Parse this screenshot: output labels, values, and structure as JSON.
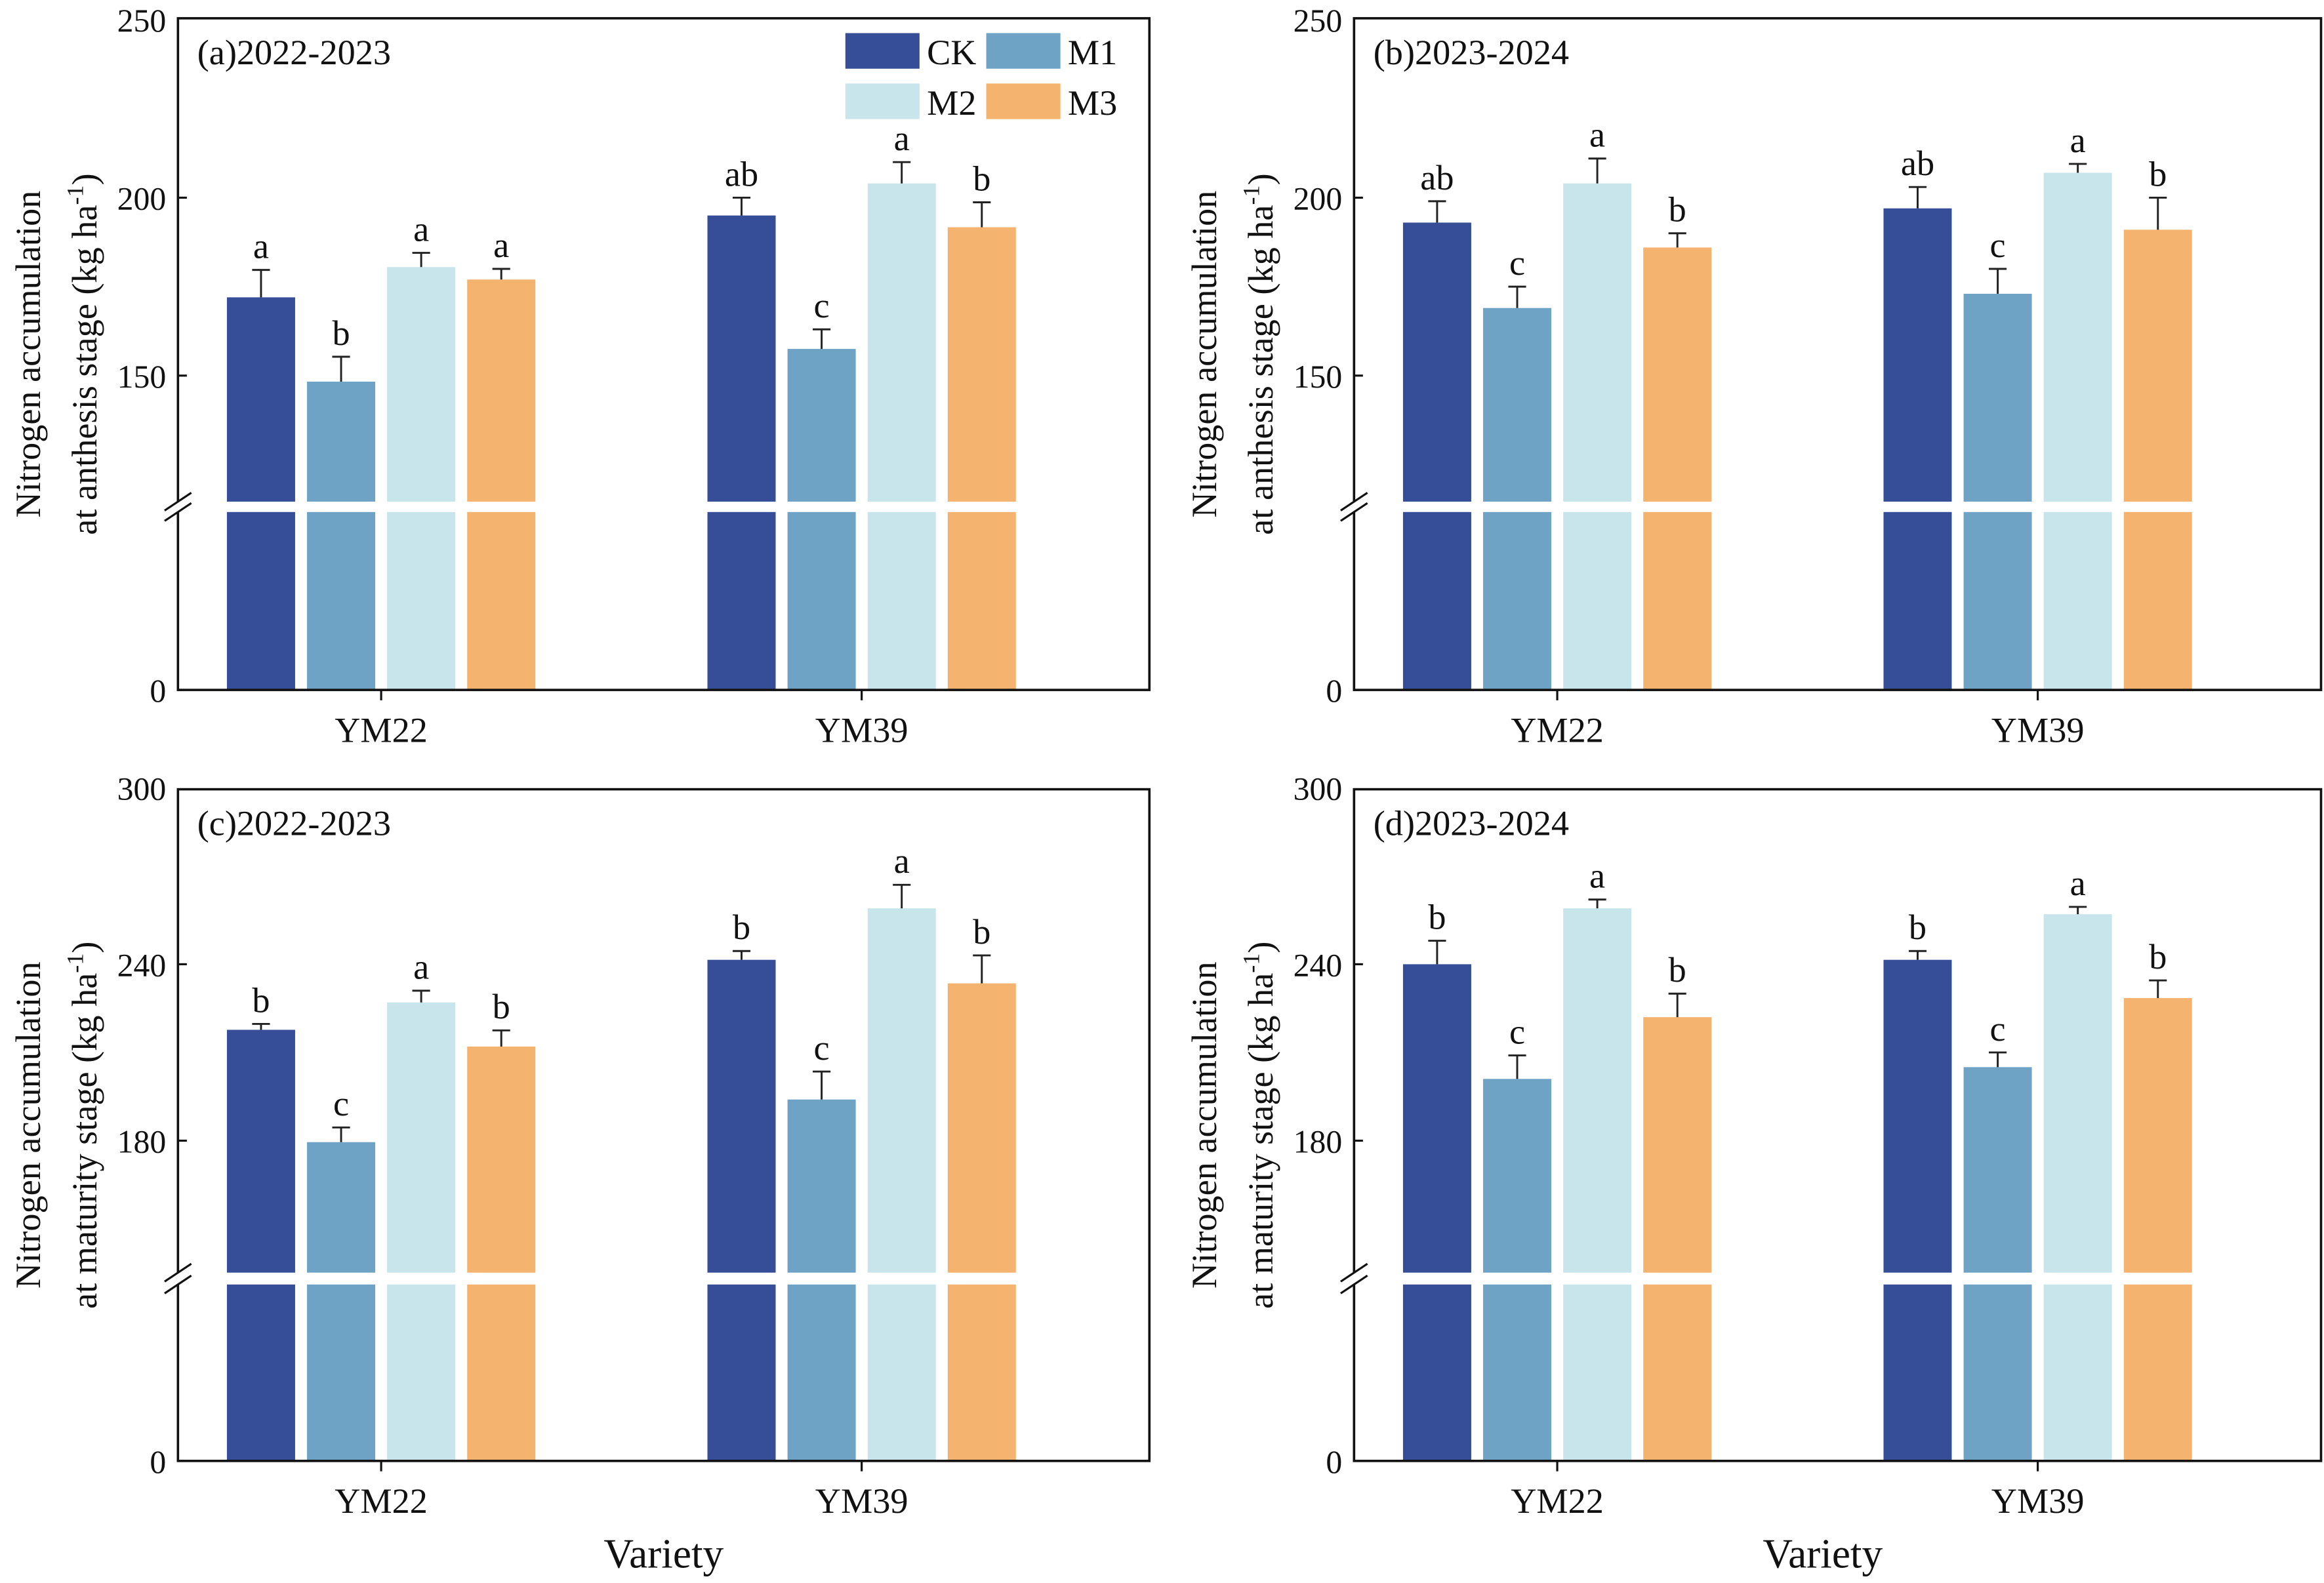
{
  "chart_data": [
    {
      "type": "bar",
      "title": "(a)2022-2023",
      "ylabel_line1": "Nitrogen accumulation",
      "ylabel_line2": "at anthesis stage (kg ha",
      "ylabel_sup": "-1",
      "ylabel_close": ")",
      "xlabel": "",
      "categories": [
        "YM22",
        "YM39"
      ],
      "yticks": [
        "0",
        "150",
        "200",
        "250"
      ],
      "ylim_upper": [
        115,
        250
      ],
      "axis_break": true,
      "series": [
        {
          "name": "CK",
          "values": [
            172,
            195
          ],
          "errors": [
            7.7,
            5
          ],
          "letters": [
            "a",
            "ab"
          ]
        },
        {
          "name": "M1",
          "values": [
            148.3,
            157.5
          ],
          "errors": [
            7,
            5.5
          ],
          "letters": [
            "b",
            "c"
          ]
        },
        {
          "name": "M2",
          "values": [
            180.5,
            204
          ],
          "errors": [
            4,
            6
          ],
          "letters": [
            "a",
            "a"
          ]
        },
        {
          "name": "M3",
          "values": [
            177,
            191.7
          ],
          "errors": [
            3,
            7
          ],
          "letters": [
            "a",
            "b"
          ]
        }
      ],
      "legend": "top-right"
    },
    {
      "type": "bar",
      "title": "(b)2023-2024",
      "ylabel_line1": "Nitrogen accumulation",
      "ylabel_line2": "at anthesis stage (kg ha",
      "ylabel_sup": "-1",
      "ylabel_close": ")",
      "xlabel": "",
      "categories": [
        "YM22",
        "YM39"
      ],
      "yticks": [
        "0",
        "150",
        "200",
        "250"
      ],
      "ylim_upper": [
        115,
        250
      ],
      "axis_break": true,
      "series": [
        {
          "name": "CK",
          "values": [
            193,
            197
          ],
          "errors": [
            6,
            6
          ],
          "letters": [
            "ab",
            "ab"
          ]
        },
        {
          "name": "M1",
          "values": [
            169,
            173
          ],
          "errors": [
            6,
            7
          ],
          "letters": [
            "c",
            "c"
          ]
        },
        {
          "name": "M2",
          "values": [
            204,
            207
          ],
          "errors": [
            7,
            2.5
          ],
          "letters": [
            "a",
            "a"
          ]
        },
        {
          "name": "M3",
          "values": [
            186,
            191
          ],
          "errors": [
            4,
            9
          ],
          "letters": [
            "b",
            "b"
          ]
        }
      ]
    },
    {
      "type": "bar",
      "title": "(c)2022-2023",
      "ylabel_line1": "Nitrogen accumulation",
      "ylabel_line2": "at maturity stage (kg ha",
      "ylabel_sup": "-1",
      "ylabel_close": ")",
      "xlabel": "Variety",
      "categories": [
        "YM22",
        "YM39"
      ],
      "yticks": [
        "0",
        "180",
        "240",
        "300"
      ],
      "ylim_upper": [
        135,
        300
      ],
      "axis_break": true,
      "series": [
        {
          "name": "CK",
          "values": [
            217.7,
            241.5
          ],
          "errors": [
            2,
            3
          ],
          "letters": [
            "b",
            "b"
          ]
        },
        {
          "name": "M1",
          "values": [
            179.5,
            194
          ],
          "errors": [
            5,
            9.5
          ],
          "letters": [
            "c",
            "c"
          ]
        },
        {
          "name": "M2",
          "values": [
            227,
            259
          ],
          "errors": [
            4,
            8
          ],
          "letters": [
            "a",
            "a"
          ]
        },
        {
          "name": "M3",
          "values": [
            212,
            233.5
          ],
          "errors": [
            5.5,
            9.5
          ],
          "letters": [
            "b",
            "b"
          ]
        }
      ]
    },
    {
      "type": "bar",
      "title": "(d)2023-2024",
      "ylabel_line1": "Nitrogen accumulation",
      "ylabel_line2": "at maturity stage (kg ha",
      "ylabel_sup": "-1",
      "ylabel_close": ")",
      "xlabel": "Variety",
      "categories": [
        "YM22",
        "YM39"
      ],
      "yticks": [
        "0",
        "180",
        "240",
        "300"
      ],
      "ylim_upper": [
        135,
        300
      ],
      "axis_break": true,
      "series": [
        {
          "name": "CK",
          "values": [
            240,
            241.5
          ],
          "errors": [
            8,
            3
          ],
          "letters": [
            "b",
            "b"
          ]
        },
        {
          "name": "M1",
          "values": [
            201,
            205
          ],
          "errors": [
            8,
            5
          ],
          "letters": [
            "c",
            "c"
          ]
        },
        {
          "name": "M2",
          "values": [
            259,
            257
          ],
          "errors": [
            3,
            2.5
          ],
          "letters": [
            "a",
            "a"
          ]
        },
        {
          "name": "M3",
          "values": [
            222,
            228.5
          ],
          "errors": [
            8,
            6
          ],
          "letters": [
            "b",
            "b"
          ]
        }
      ]
    }
  ],
  "colors": {
    "CK": "#364e97",
    "M1": "#6fa3c5",
    "M2": "#c8e5ec",
    "M3": "#f4b46f"
  }
}
